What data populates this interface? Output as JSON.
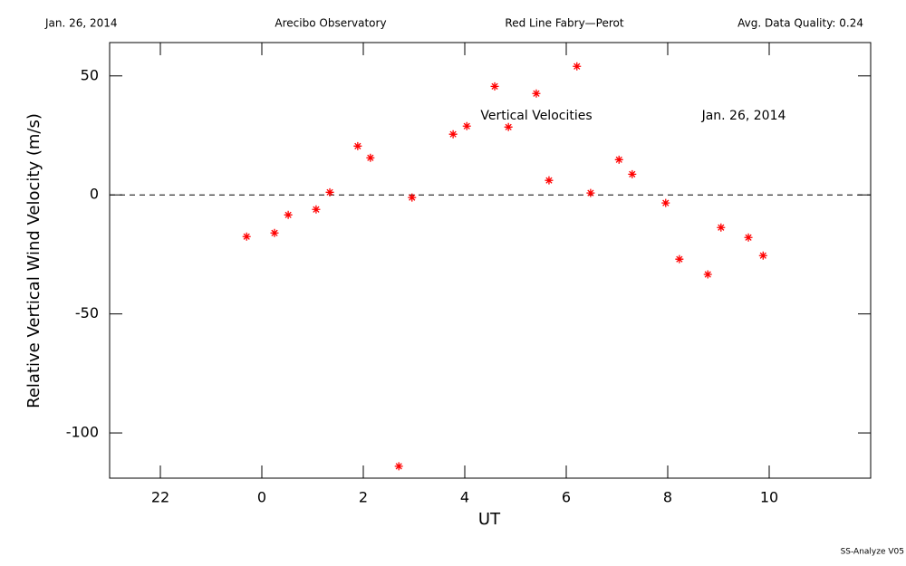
{
  "chart_data": {
    "type": "scatter",
    "header": [
      "Jan. 26, 2014",
      "Arecibo Observatory",
      "Red Line Fabry—Perot",
      "Avg. Data Quality: 0.24"
    ],
    "annotations": [
      "Vertical Velocities",
      "Jan. 26, 2014"
    ],
    "footer": "SS-Analyze V05",
    "xlabel": "UT",
    "ylabel": "Relative Vertical Wind Velocity (m/s)",
    "xlim": [
      -3,
      12
    ],
    "ylim": [
      -119,
      64
    ],
    "xticks": [
      {
        "value": -2,
        "label": "22"
      },
      0,
      2,
      4,
      6,
      8,
      10
    ],
    "yticks": [
      -100,
      -50,
      0,
      50
    ],
    "color": "#ff0000",
    "x": [
      -0.3,
      0.25,
      0.52,
      1.07,
      1.34,
      1.89,
      2.14,
      2.7,
      2.96,
      3.77,
      4.04,
      4.59,
      4.86,
      5.41,
      5.66,
      6.21,
      6.48,
      7.04,
      7.3,
      7.96,
      8.23,
      8.79,
      9.05,
      9.59,
      9.88
    ],
    "values": [
      -17.5,
      -16,
      -8.4,
      -6.1,
      1.1,
      20.5,
      15.6,
      -114,
      -1.1,
      25.5,
      28.9,
      45.6,
      28.5,
      42.6,
      6.1,
      54,
      0.8,
      14.8,
      8.7,
      -3.4,
      -27,
      -33.4,
      -13.7,
      -17.9,
      -25.5
    ]
  }
}
